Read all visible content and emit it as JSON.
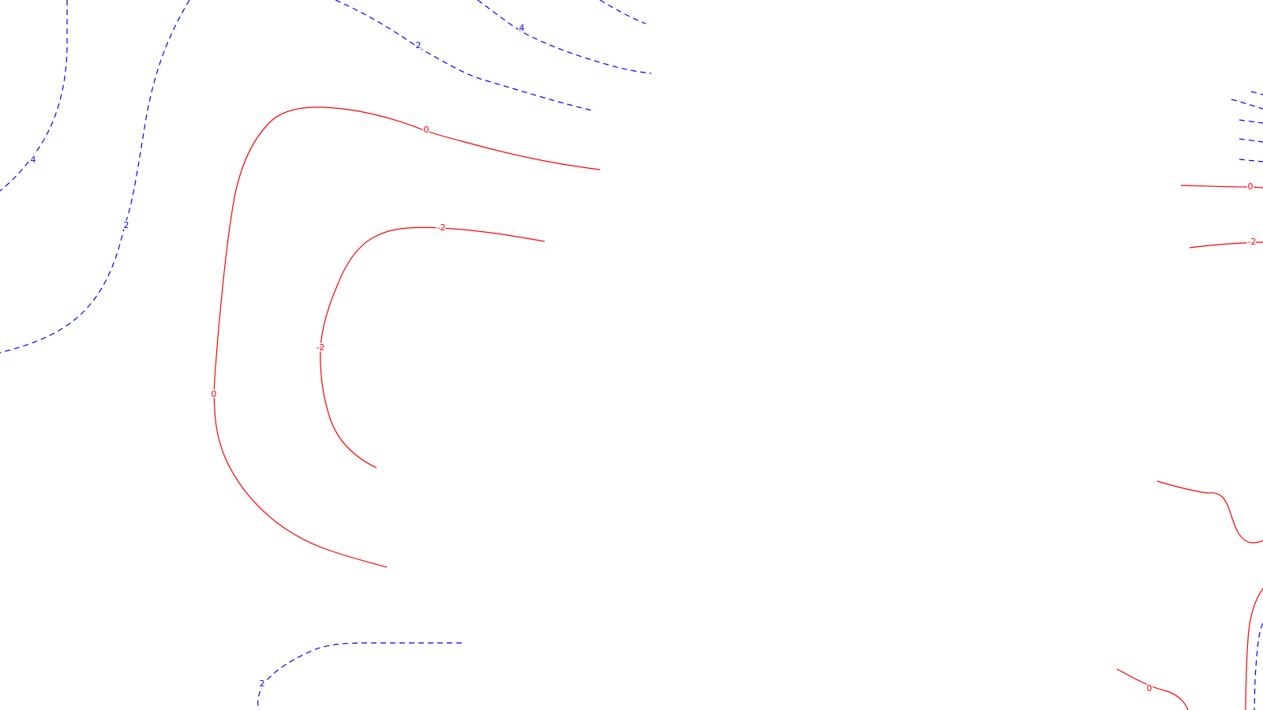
{
  "map": {
    "colors": {
      "positive": "#0000ff",
      "negative": "#ff0000"
    },
    "contour_lines": [
      {
        "id": "pos-4-left",
        "value": 4,
        "style": "dashed",
        "color": "#0000ff"
      },
      {
        "id": "pos-2-left",
        "value": 2,
        "style": "dashed",
        "color": "#0000ff"
      },
      {
        "id": "pos-2-top",
        "value": 2,
        "style": "dashed",
        "color": "#0000ff"
      },
      {
        "id": "pos-4-top",
        "value": 4,
        "style": "dashed",
        "color": "#0000ff"
      },
      {
        "id": "pos-top-edge",
        "value": null,
        "style": "dashed",
        "color": "#0000ff"
      },
      {
        "id": "pos-2-bottom",
        "value": 2,
        "style": "dashed",
        "color": "#0000ff"
      },
      {
        "id": "pos-right-stack",
        "value": null,
        "style": "dashed",
        "color": "#0000ff"
      },
      {
        "id": "pos-right-bottom",
        "value": null,
        "style": "dashed",
        "color": "#0000ff"
      },
      {
        "id": "zero-left",
        "value": 0,
        "style": "solid",
        "color": "#ff0000"
      },
      {
        "id": "neg-2-left",
        "value": -2,
        "style": "solid",
        "color": "#ff0000"
      },
      {
        "id": "zero-right",
        "value": 0,
        "style": "solid",
        "color": "#ff0000"
      },
      {
        "id": "neg-2-right",
        "value": -2,
        "style": "solid",
        "color": "#ff0000"
      },
      {
        "id": "neg-right-hook",
        "value": null,
        "style": "solid",
        "color": "#ff0000"
      },
      {
        "id": "neg-right-bottom",
        "value": null,
        "style": "solid",
        "color": "#ff0000"
      },
      {
        "id": "zero-bottom-right",
        "value": 0,
        "style": "solid",
        "color": "#ff0000"
      }
    ],
    "labels": {
      "pos_4_left": "4",
      "pos_2_left": "2",
      "pos_2_top": "2",
      "pos_4_top": "4",
      "pos_2_bottom": "2",
      "zero_left_top": "0",
      "zero_left_side": "0",
      "neg_2_left_top": "-2",
      "neg_2_left_side": "-2",
      "zero_right": "0",
      "neg_2_right": "-2",
      "zero_bottom_right": "0"
    }
  }
}
